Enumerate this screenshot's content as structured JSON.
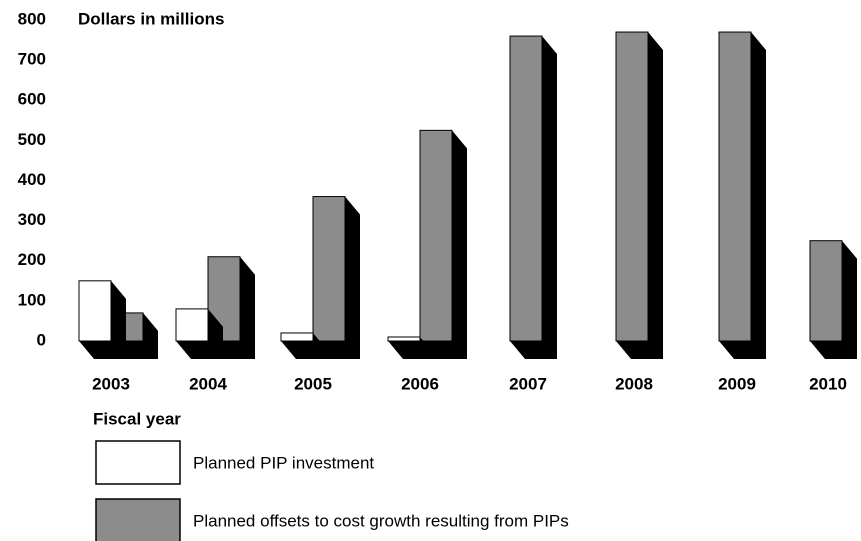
{
  "chart_data": {
    "type": "bar3d",
    "y_label": "Dollars in millions",
    "x_label": "Fiscal year",
    "categories": [
      "2003",
      "2004",
      "2005",
      "2006",
      "2007",
      "2008",
      "2009",
      "2010"
    ],
    "series": [
      {
        "name": "Planned PIP investment",
        "color": "#ffffff",
        "values": [
          150,
          80,
          20,
          10,
          null,
          null,
          null,
          null
        ]
      },
      {
        "name": "Planned offsets to cost growth resulting from PIPs",
        "color": "#8c8c8c",
        "values": [
          70,
          210,
          360,
          525,
          760,
          770,
          770,
          250
        ]
      }
    ],
    "ylim": [
      0,
      800
    ],
    "yticks": [
      0,
      100,
      200,
      300,
      400,
      500,
      600,
      700,
      800
    ],
    "grid": false
  }
}
